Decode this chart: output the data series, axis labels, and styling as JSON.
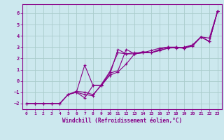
{
  "xlabel": "Windchill (Refroidissement éolien,°C)",
  "ylabel": "",
  "background_color": "#cce8ee",
  "grid_color": "#aacccc",
  "line_color": "#880088",
  "xlim": [
    -0.5,
    23.5
  ],
  "ylim": [
    -2.5,
    6.8
  ],
  "xticks": [
    0,
    1,
    2,
    3,
    4,
    5,
    6,
    7,
    8,
    9,
    10,
    11,
    12,
    13,
    14,
    15,
    16,
    17,
    18,
    19,
    20,
    21,
    22,
    23
  ],
  "yticks": [
    -2,
    -1,
    0,
    1,
    2,
    3,
    4,
    5,
    6
  ],
  "series": [
    {
      "x": [
        0,
        1,
        2,
        3,
        4,
        5,
        6,
        7,
        8,
        9,
        10,
        11,
        12,
        13,
        14,
        15,
        16,
        17,
        18,
        19,
        20,
        21,
        22,
        23
      ],
      "y": [
        -2,
        -2,
        -2,
        -2,
        -2,
        -1.2,
        -1,
        -1.2,
        -1.3,
        -0.3,
        0.8,
        2.5,
        2.4,
        2.5,
        2.5,
        2.7,
        2.9,
        3.0,
        2.9,
        3.0,
        3.2,
        3.9,
        3.8,
        6.2
      ]
    },
    {
      "x": [
        0,
        1,
        2,
        3,
        4,
        5,
        6,
        7,
        8,
        9,
        10,
        11,
        12,
        13,
        14,
        15,
        16,
        17,
        18,
        19,
        20,
        21,
        22,
        23
      ],
      "y": [
        -2,
        -2,
        -2,
        -2,
        -2,
        -1.2,
        -1,
        -1.5,
        -0.4,
        -0.4,
        0.7,
        0.9,
        2.8,
        2.4,
        2.6,
        2.5,
        2.8,
        3.0,
        3.0,
        2.9,
        3.2,
        3.9,
        3.5,
        6.2
      ]
    },
    {
      "x": [
        0,
        1,
        2,
        3,
        4,
        5,
        6,
        7,
        8,
        9,
        10,
        11,
        12,
        13,
        14,
        15,
        16,
        17,
        18,
        19,
        20,
        21,
        22,
        23
      ],
      "y": [
        -2,
        -2,
        -2,
        -2,
        -2,
        -1.2,
        -0.9,
        -1,
        -1.2,
        -0.4,
        0.5,
        0.8,
        1.5,
        2.4,
        2.5,
        2.5,
        2.7,
        2.9,
        2.95,
        2.9,
        3.1,
        3.9,
        3.5,
        6.2
      ]
    },
    {
      "x": [
        6,
        7,
        8,
        9,
        10,
        11,
        12,
        13,
        14,
        15,
        16,
        17,
        18,
        19,
        20,
        21,
        22,
        23
      ],
      "y": [
        -1,
        1.4,
        -0.4,
        -0.4,
        0.5,
        2.8,
        2.4,
        2.4,
        2.5,
        2.5,
        2.7,
        2.9,
        3.0,
        2.9,
        3.2,
        3.9,
        3.5,
        6.2
      ]
    }
  ]
}
